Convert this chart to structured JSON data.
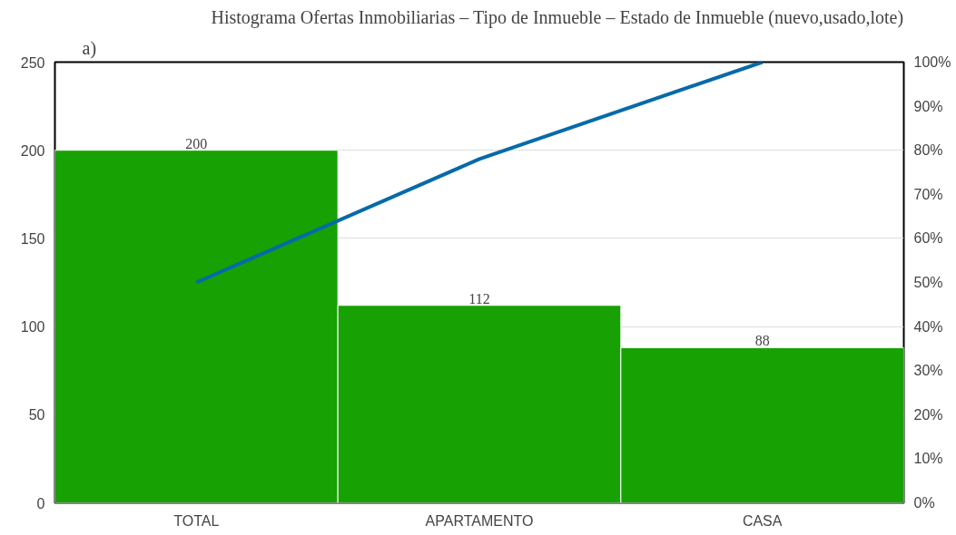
{
  "chart_data": {
    "type": "bar",
    "title": "Histograma Ofertas Inmobiliarias – Tipo de Inmueble – Estado de Inmueble (nuevo,usado,lote)",
    "annotations": [
      "a)"
    ],
    "categories": [
      "TOTAL",
      "APARTAMENTO",
      "CASA"
    ],
    "series": [
      {
        "color": "#17a103",
        "values": [
          200,
          112,
          88
        ],
        "value_labels": [
          "200",
          "112",
          "88"
        ]
      },
      {
        "type": "line",
        "color": "#066aa9",
        "axis": "y2",
        "values": [
          50,
          78,
          100
        ]
      }
    ],
    "ylim": [
      0,
      250
    ],
    "yticks": [
      0,
      50,
      100,
      150,
      200,
      250
    ],
    "y2lim": [
      0,
      100
    ],
    "y2ticks": [
      {
        "value": 0,
        "label": "0%"
      },
      {
        "value": 10,
        "label": "10%"
      },
      {
        "value": 20,
        "label": "20%"
      },
      {
        "value": 30,
        "label": "30%"
      },
      {
        "value": 40,
        "label": "40%"
      },
      {
        "value": 50,
        "label": "50%"
      },
      {
        "value": 60,
        "label": "60%"
      },
      {
        "value": 70,
        "label": "70%"
      },
      {
        "value": 80,
        "label": "80%"
      },
      {
        "value": 90,
        "label": "90%"
      },
      {
        "value": 100,
        "label": "100%"
      }
    ],
    "grid": "y",
    "marker": "none",
    "line_style": "solid"
  }
}
